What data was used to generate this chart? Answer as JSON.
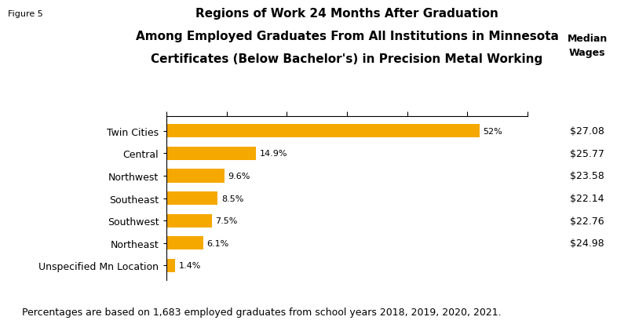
{
  "title_line1": "Regions of Work 24 Months After Graduation",
  "title_line2": "Among Employed Graduates From All Institutions in Minnesota",
  "title_line3": "Certificates (Below Bachelor's) in Precision Metal Working",
  "figure_label": "Figure 5",
  "categories": [
    "Twin Cities",
    "Central",
    "Northwest",
    "Southeast",
    "Southwest",
    "Northeast",
    "Unspecified Mn Location"
  ],
  "values": [
    52.0,
    14.9,
    9.6,
    8.5,
    7.5,
    6.1,
    1.4
  ],
  "labels": [
    "52%",
    "14.9%",
    "9.6%",
    "8.5%",
    "7.5%",
    "6.1%",
    "1.4%"
  ],
  "median_wages": [
    "$27.08",
    "$25.77",
    "$23.58",
    "$22.14",
    "$22.76",
    "$24.98",
    ""
  ],
  "bar_color": "#F5A800",
  "footnote": "Percentages are based on 1,683 employed graduates from school years 2018, 2019, 2020, 2021.",
  "median_wages_header": "Median\nWages",
  "xlim": [
    0,
    60
  ],
  "background_color": "#ffffff",
  "title_fontsize": 11,
  "label_fontsize": 9,
  "footnote_fontsize": 9
}
